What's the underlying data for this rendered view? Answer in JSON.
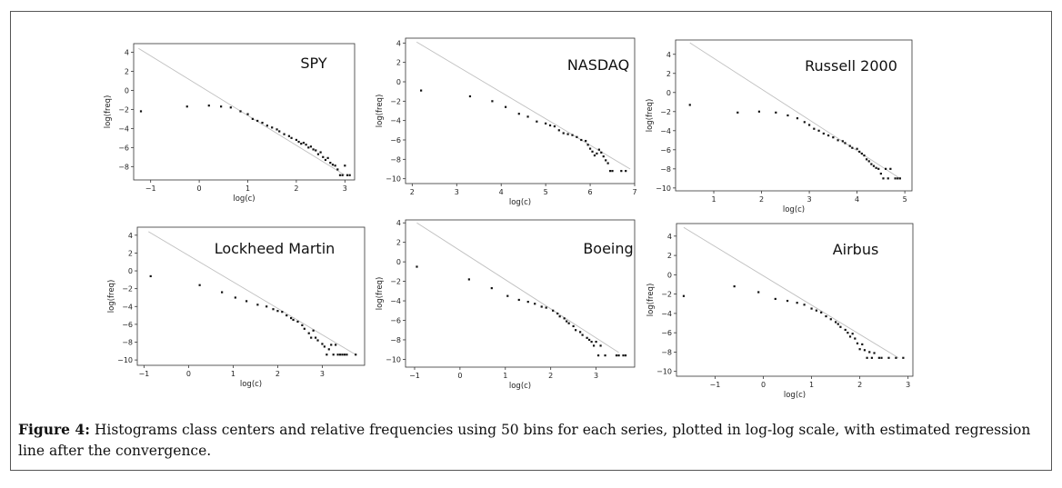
{
  "caption": {
    "label": "Figure 4:",
    "text": " Histograms class centers and relative frequencies using 50 bins for each series, plotted in log-log scale, with estimated regression line after the convergence."
  },
  "colors": {
    "points": "#111111",
    "regression_line": "#bfbfbf",
    "axes": "#333333"
  },
  "chart_data": [
    {
      "type": "scatter",
      "title": "SPY",
      "xlabel": "log(c)",
      "ylabel": "log(freq)",
      "xlim": [
        -1.35,
        3.2
      ],
      "ylim": [
        -9.4,
        4.9
      ],
      "xticks": [
        -1,
        0,
        1,
        2,
        3
      ],
      "yticks": [
        4,
        2,
        0,
        -2,
        -4,
        -6,
        -8
      ],
      "grid": false,
      "regression_line": [
        [
          -1.25,
          4.4
        ],
        [
          3.0,
          -8.9
        ]
      ],
      "points": [
        [
          -1.2,
          -2.2
        ],
        [
          -0.25,
          -1.7
        ],
        [
          0.2,
          -1.6
        ],
        [
          0.45,
          -1.7
        ],
        [
          0.65,
          -1.8
        ],
        [
          0.85,
          -2.2
        ],
        [
          1.0,
          -2.5
        ],
        [
          1.1,
          -3.0
        ],
        [
          1.2,
          -3.2
        ],
        [
          1.3,
          -3.4
        ],
        [
          1.4,
          -3.7
        ],
        [
          1.5,
          -3.9
        ],
        [
          1.6,
          -4.1
        ],
        [
          1.65,
          -4.3
        ],
        [
          1.75,
          -4.6
        ],
        [
          1.85,
          -4.8
        ],
        [
          1.9,
          -5.0
        ],
        [
          2.0,
          -5.2
        ],
        [
          2.05,
          -5.4
        ],
        [
          2.1,
          -5.6
        ],
        [
          2.15,
          -5.5
        ],
        [
          2.2,
          -5.7
        ],
        [
          2.25,
          -6.0
        ],
        [
          2.3,
          -5.9
        ],
        [
          2.35,
          -6.2
        ],
        [
          2.4,
          -6.3
        ],
        [
          2.45,
          -6.7
        ],
        [
          2.5,
          -6.5
        ],
        [
          2.55,
          -7.0
        ],
        [
          2.6,
          -7.3
        ],
        [
          2.65,
          -7.1
        ],
        [
          2.7,
          -7.6
        ],
        [
          2.75,
          -7.8
        ],
        [
          2.8,
          -7.9
        ],
        [
          2.85,
          -8.3
        ],
        [
          2.9,
          -8.9
        ],
        [
          2.95,
          -8.9
        ],
        [
          3.0,
          -7.9
        ],
        [
          3.05,
          -8.9
        ],
        [
          3.1,
          -8.9
        ]
      ]
    },
    {
      "type": "scatter",
      "title": "NASDAQ",
      "xlabel": "log(c)",
      "ylabel": "log(freq)",
      "xlim": [
        1.85,
        7.0
      ],
      "ylim": [
        -10.5,
        4.5
      ],
      "xticks": [
        2,
        3,
        4,
        5,
        6,
        7
      ],
      "yticks": [
        4,
        2,
        0,
        -2,
        -4,
        -6,
        -8,
        -10
      ],
      "grid": false,
      "regression_line": [
        [
          2.1,
          4.1
        ],
        [
          6.9,
          -9.0
        ]
      ],
      "points": [
        [
          2.2,
          -0.9
        ],
        [
          3.3,
          -1.5
        ],
        [
          3.8,
          -2.0
        ],
        [
          4.1,
          -2.6
        ],
        [
          4.4,
          -3.3
        ],
        [
          4.6,
          -3.6
        ],
        [
          4.8,
          -4.1
        ],
        [
          5.0,
          -4.3
        ],
        [
          5.1,
          -4.5
        ],
        [
          5.2,
          -4.6
        ],
        [
          5.3,
          -5.0
        ],
        [
          5.4,
          -5.3
        ],
        [
          5.5,
          -5.4
        ],
        [
          5.6,
          -5.5
        ],
        [
          5.7,
          -5.7
        ],
        [
          5.8,
          -6.0
        ],
        [
          5.9,
          -6.1
        ],
        [
          5.95,
          -6.5
        ],
        [
          6.0,
          -6.9
        ],
        [
          6.05,
          -7.2
        ],
        [
          6.1,
          -7.6
        ],
        [
          6.15,
          -7.4
        ],
        [
          6.2,
          -7.0
        ],
        [
          6.25,
          -7.3
        ],
        [
          6.3,
          -7.7
        ],
        [
          6.35,
          -8.1
        ],
        [
          6.4,
          -8.4
        ],
        [
          6.45,
          -9.2
        ],
        [
          6.5,
          -9.2
        ],
        [
          6.7,
          -9.2
        ],
        [
          6.8,
          -9.2
        ]
      ]
    },
    {
      "type": "scatter",
      "title": "Russell 2000",
      "xlabel": "log(c)",
      "ylabel": "log(freq)",
      "xlim": [
        0.2,
        5.15
      ],
      "ylim": [
        -10.3,
        5.5
      ],
      "xticks": [
        1,
        2,
        3,
        4,
        5
      ],
      "yticks": [
        4,
        2,
        0,
        -2,
        -4,
        -6,
        -8,
        -10
      ],
      "grid": false,
      "regression_line": [
        [
          0.5,
          5.2
        ],
        [
          4.9,
          -9.0
        ]
      ],
      "points": [
        [
          0.5,
          -1.3
        ],
        [
          1.5,
          -2.1
        ],
        [
          1.95,
          -2.0
        ],
        [
          2.3,
          -2.1
        ],
        [
          2.55,
          -2.4
        ],
        [
          2.75,
          -2.7
        ],
        [
          2.9,
          -3.1
        ],
        [
          3.0,
          -3.4
        ],
        [
          3.1,
          -3.8
        ],
        [
          3.2,
          -4.0
        ],
        [
          3.3,
          -4.3
        ],
        [
          3.4,
          -4.5
        ],
        [
          3.5,
          -4.7
        ],
        [
          3.6,
          -5.0
        ],
        [
          3.7,
          -5.1
        ],
        [
          3.75,
          -5.3
        ],
        [
          3.85,
          -5.6
        ],
        [
          3.9,
          -5.8
        ],
        [
          4.0,
          -5.9
        ],
        [
          4.05,
          -6.2
        ],
        [
          4.1,
          -6.4
        ],
        [
          4.15,
          -6.6
        ],
        [
          4.2,
          -7.0
        ],
        [
          4.25,
          -7.2
        ],
        [
          4.3,
          -7.5
        ],
        [
          4.35,
          -7.7
        ],
        [
          4.4,
          -7.9
        ],
        [
          4.45,
          -8.0
        ],
        [
          4.5,
          -8.5
        ],
        [
          4.55,
          -9.0
        ],
        [
          4.6,
          -8.0
        ],
        [
          4.65,
          -9.0
        ],
        [
          4.7,
          -8.0
        ],
        [
          4.8,
          -9.0
        ],
        [
          4.85,
          -9.0
        ],
        [
          4.9,
          -9.0
        ]
      ]
    },
    {
      "type": "scatter",
      "title": "Lockheed Martin",
      "xlabel": "log(c)",
      "ylabel": "log(freq)",
      "xlim": [
        -1.15,
        3.95
      ],
      "ylim": [
        -10.6,
        4.9
      ],
      "xticks": [
        -1,
        0,
        1,
        2,
        3
      ],
      "yticks": [
        4,
        2,
        0,
        -2,
        -4,
        -6,
        -8,
        -10
      ],
      "grid": false,
      "regression_line": [
        [
          -0.9,
          4.4
        ],
        [
          3.75,
          -9.4
        ]
      ],
      "points": [
        [
          -0.85,
          -0.6
        ],
        [
          0.25,
          -1.6
        ],
        [
          0.75,
          -2.4
        ],
        [
          1.05,
          -3.0
        ],
        [
          1.3,
          -3.4
        ],
        [
          1.55,
          -3.8
        ],
        [
          1.75,
          -4.0
        ],
        [
          1.9,
          -4.3
        ],
        [
          2.0,
          -4.5
        ],
        [
          2.1,
          -4.6
        ],
        [
          2.2,
          -5.0
        ],
        [
          2.3,
          -5.3
        ],
        [
          2.35,
          -5.5
        ],
        [
          2.45,
          -5.7
        ],
        [
          2.55,
          -6.1
        ],
        [
          2.6,
          -6.5
        ],
        [
          2.7,
          -7.0
        ],
        [
          2.75,
          -7.5
        ],
        [
          2.8,
          -6.7
        ],
        [
          2.85,
          -7.5
        ],
        [
          2.9,
          -7.8
        ],
        [
          3.0,
          -8.2
        ],
        [
          3.05,
          -8.5
        ],
        [
          3.1,
          -9.4
        ],
        [
          3.15,
          -8.8
        ],
        [
          3.2,
          -8.3
        ],
        [
          3.25,
          -9.4
        ],
        [
          3.3,
          -8.3
        ],
        [
          3.35,
          -9.4
        ],
        [
          3.4,
          -9.4
        ],
        [
          3.45,
          -9.4
        ],
        [
          3.5,
          -9.4
        ],
        [
          3.55,
          -9.4
        ],
        [
          3.75,
          -9.4
        ]
      ]
    },
    {
      "type": "scatter",
      "title": "Boeing",
      "xlabel": "log(c)",
      "ylabel": "log(freq)",
      "xlim": [
        -1.2,
        3.85
      ],
      "ylim": [
        -10.8,
        4.3
      ],
      "xticks": [
        -1,
        0,
        1,
        2,
        3
      ],
      "yticks": [
        4,
        2,
        0,
        -2,
        -4,
        -6,
        -8,
        -10
      ],
      "grid": false,
      "regression_line": [
        [
          -0.95,
          4.0
        ],
        [
          3.5,
          -9.3
        ]
      ],
      "points": [
        [
          -0.95,
          -0.5
        ],
        [
          0.2,
          -1.8
        ],
        [
          0.7,
          -2.7
        ],
        [
          1.05,
          -3.5
        ],
        [
          1.3,
          -3.9
        ],
        [
          1.5,
          -4.1
        ],
        [
          1.65,
          -4.3
        ],
        [
          1.8,
          -4.6
        ],
        [
          1.9,
          -4.7
        ],
        [
          2.05,
          -5.0
        ],
        [
          2.15,
          -5.3
        ],
        [
          2.2,
          -5.6
        ],
        [
          2.3,
          -5.8
        ],
        [
          2.35,
          -6.1
        ],
        [
          2.4,
          -6.3
        ],
        [
          2.5,
          -6.6
        ],
        [
          2.55,
          -7.0
        ],
        [
          2.65,
          -7.2
        ],
        [
          2.7,
          -7.5
        ],
        [
          2.8,
          -7.8
        ],
        [
          2.85,
          -8.0
        ],
        [
          2.9,
          -8.2
        ],
        [
          2.95,
          -8.6
        ],
        [
          3.0,
          -8.2
        ],
        [
          3.05,
          -9.6
        ],
        [
          3.1,
          -8.6
        ],
        [
          3.2,
          -9.6
        ],
        [
          3.45,
          -9.6
        ],
        [
          3.5,
          -9.6
        ],
        [
          3.6,
          -9.6
        ],
        [
          3.65,
          -9.6
        ]
      ]
    },
    {
      "type": "scatter",
      "title": "Airbus",
      "xlabel": "log(c)",
      "ylabel": "log(freq)",
      "xlim": [
        -1.8,
        3.1
      ],
      "ylim": [
        -10.5,
        5.3
      ],
      "xticks": [
        -1,
        0,
        1,
        2,
        3
      ],
      "yticks": [
        4,
        2,
        0,
        -2,
        -4,
        -6,
        -8,
        -10
      ],
      "grid": false,
      "regression_line": [
        [
          -1.65,
          4.9
        ],
        [
          2.8,
          -8.6
        ]
      ],
      "points": [
        [
          -1.65,
          -2.2
        ],
        [
          -0.6,
          -1.2
        ],
        [
          -0.1,
          -1.8
        ],
        [
          0.25,
          -2.5
        ],
        [
          0.5,
          -2.7
        ],
        [
          0.7,
          -2.9
        ],
        [
          0.85,
          -3.1
        ],
        [
          1.0,
          -3.5
        ],
        [
          1.1,
          -3.7
        ],
        [
          1.2,
          -3.9
        ],
        [
          1.3,
          -4.3
        ],
        [
          1.4,
          -4.6
        ],
        [
          1.5,
          -4.9
        ],
        [
          1.55,
          -5.1
        ],
        [
          1.6,
          -5.4
        ],
        [
          1.7,
          -5.7
        ],
        [
          1.75,
          -6.0
        ],
        [
          1.8,
          -6.4
        ],
        [
          1.85,
          -6.1
        ],
        [
          1.9,
          -6.6
        ],
        [
          1.95,
          -7.1
        ],
        [
          2.0,
          -7.7
        ],
        [
          2.05,
          -7.2
        ],
        [
          2.1,
          -7.8
        ],
        [
          2.15,
          -8.6
        ],
        [
          2.2,
          -8.0
        ],
        [
          2.25,
          -8.6
        ],
        [
          2.3,
          -8.1
        ],
        [
          2.4,
          -8.6
        ],
        [
          2.45,
          -8.6
        ],
        [
          2.6,
          -8.6
        ],
        [
          2.75,
          -8.6
        ],
        [
          2.9,
          -8.6
        ]
      ]
    }
  ]
}
